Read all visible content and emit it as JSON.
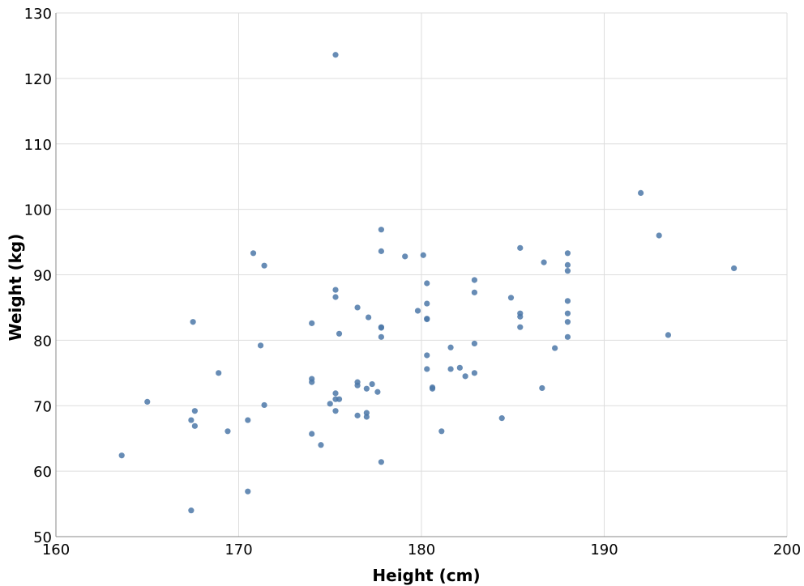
{
  "chart_data": {
    "type": "scatter",
    "title": "",
    "xlabel": "Height (cm)",
    "ylabel": "Weight (kg)",
    "xlim": [
      160,
      200
    ],
    "ylim": [
      50,
      130
    ],
    "xticks": [
      160,
      170,
      180,
      190,
      200
    ],
    "yticks": [
      50,
      60,
      70,
      80,
      90,
      100,
      110,
      120,
      130
    ],
    "grid": true,
    "marker_color": "#4c78a8",
    "series": [
      {
        "points": [
          [
            163.6,
            62.4
          ],
          [
            165.0,
            70.6
          ],
          [
            167.4,
            54.0
          ],
          [
            167.4,
            67.8
          ],
          [
            167.5,
            82.8
          ],
          [
            167.6,
            69.2
          ],
          [
            167.6,
            66.9
          ],
          [
            168.9,
            75.0
          ],
          [
            169.4,
            66.1
          ],
          [
            170.5,
            56.9
          ],
          [
            170.5,
            67.8
          ],
          [
            170.8,
            93.3
          ],
          [
            171.2,
            79.2
          ],
          [
            171.4,
            91.4
          ],
          [
            171.4,
            70.1
          ],
          [
            174.0,
            82.6
          ],
          [
            174.0,
            74.1
          ],
          [
            174.0,
            73.6
          ],
          [
            174.0,
            65.7
          ],
          [
            174.5,
            64.0
          ],
          [
            175.0,
            70.3
          ],
          [
            175.3,
            123.6
          ],
          [
            175.3,
            87.7
          ],
          [
            175.3,
            86.6
          ],
          [
            175.3,
            71.9
          ],
          [
            175.3,
            71.0
          ],
          [
            175.3,
            69.2
          ],
          [
            175.5,
            81.0
          ],
          [
            175.5,
            71.0
          ],
          [
            176.5,
            85.0
          ],
          [
            176.5,
            73.6
          ],
          [
            176.5,
            73.1
          ],
          [
            176.5,
            68.5
          ],
          [
            177.0,
            72.6
          ],
          [
            177.0,
            68.9
          ],
          [
            177.0,
            68.3
          ],
          [
            177.1,
            83.5
          ],
          [
            177.3,
            73.3
          ],
          [
            177.6,
            72.1
          ],
          [
            177.8,
            96.9
          ],
          [
            177.8,
            93.6
          ],
          [
            177.8,
            82.0
          ],
          [
            177.8,
            81.9
          ],
          [
            177.8,
            80.5
          ],
          [
            177.8,
            61.4
          ],
          [
            179.1,
            92.8
          ],
          [
            179.8,
            84.5
          ],
          [
            180.1,
            93.0
          ],
          [
            180.3,
            88.7
          ],
          [
            180.3,
            85.6
          ],
          [
            180.3,
            83.3
          ],
          [
            180.3,
            83.2
          ],
          [
            180.3,
            77.7
          ],
          [
            180.3,
            75.6
          ],
          [
            180.6,
            72.8
          ],
          [
            180.6,
            72.6
          ],
          [
            181.1,
            66.1
          ],
          [
            181.6,
            78.9
          ],
          [
            181.6,
            75.6
          ],
          [
            182.1,
            75.8
          ],
          [
            182.4,
            74.5
          ],
          [
            182.9,
            89.2
          ],
          [
            182.9,
            87.3
          ],
          [
            182.9,
            79.5
          ],
          [
            182.9,
            75.0
          ],
          [
            184.4,
            68.1
          ],
          [
            184.9,
            86.5
          ],
          [
            185.4,
            94.1
          ],
          [
            185.4,
            84.1
          ],
          [
            185.4,
            83.6
          ],
          [
            185.4,
            82.0
          ],
          [
            186.6,
            72.7
          ],
          [
            186.7,
            91.9
          ],
          [
            187.3,
            78.8
          ],
          [
            188.0,
            93.3
          ],
          [
            188.0,
            91.5
          ],
          [
            188.0,
            90.6
          ],
          [
            188.0,
            86.0
          ],
          [
            188.0,
            84.1
          ],
          [
            188.0,
            82.8
          ],
          [
            188.0,
            80.5
          ],
          [
            192.0,
            102.5
          ],
          [
            193.0,
            96.0
          ],
          [
            193.5,
            80.8
          ],
          [
            197.1,
            91.0
          ]
        ]
      }
    ]
  }
}
